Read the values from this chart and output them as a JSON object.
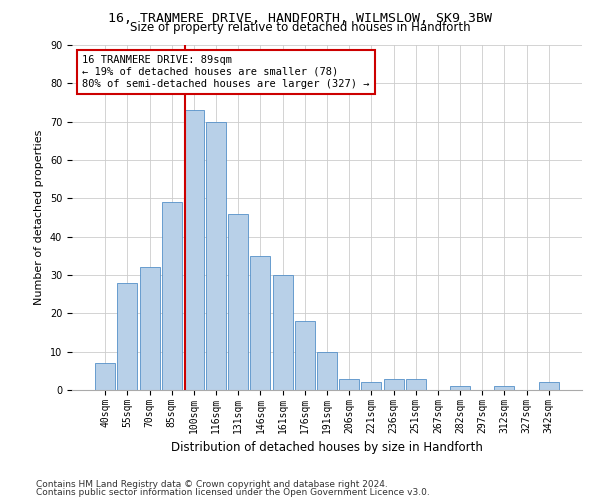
{
  "title": "16, TRANMERE DRIVE, HANDFORTH, WILMSLOW, SK9 3BW",
  "subtitle": "Size of property relative to detached houses in Handforth",
  "xlabel": "Distribution of detached houses by size in Handforth",
  "ylabel": "Number of detached properties",
  "bin_labels": [
    "40sqm",
    "55sqm",
    "70sqm",
    "85sqm",
    "100sqm",
    "116sqm",
    "131sqm",
    "146sqm",
    "161sqm",
    "176sqm",
    "191sqm",
    "206sqm",
    "221sqm",
    "236sqm",
    "251sqm",
    "267sqm",
    "282sqm",
    "297sqm",
    "312sqm",
    "327sqm",
    "342sqm"
  ],
  "bar_heights": [
    7,
    28,
    32,
    49,
    73,
    70,
    46,
    35,
    30,
    18,
    10,
    3,
    2,
    3,
    3,
    0,
    1,
    0,
    1,
    0,
    2
  ],
  "bar_color": "#b8d0e8",
  "bar_edge_color": "#5590c8",
  "vline_x_idx": 3.62,
  "vline_color": "#cc0000",
  "annotation_line1": "16 TRANMERE DRIVE: 89sqm",
  "annotation_line2": "← 19% of detached houses are smaller (78)",
  "annotation_line3": "80% of semi-detached houses are larger (327) →",
  "annotation_box_color": "#ffffff",
  "annotation_box_edge": "#cc0000",
  "ylim": [
    0,
    90
  ],
  "yticks": [
    0,
    10,
    20,
    30,
    40,
    50,
    60,
    70,
    80,
    90
  ],
  "grid_color": "#cccccc",
  "background_color": "#ffffff",
  "footer_line1": "Contains HM Land Registry data © Crown copyright and database right 2024.",
  "footer_line2": "Contains public sector information licensed under the Open Government Licence v3.0.",
  "title_fontsize": 9.5,
  "subtitle_fontsize": 8.5,
  "ylabel_fontsize": 8,
  "xlabel_fontsize": 8.5,
  "tick_fontsize": 7,
  "annot_fontsize": 7.5,
  "footer_fontsize": 6.5
}
